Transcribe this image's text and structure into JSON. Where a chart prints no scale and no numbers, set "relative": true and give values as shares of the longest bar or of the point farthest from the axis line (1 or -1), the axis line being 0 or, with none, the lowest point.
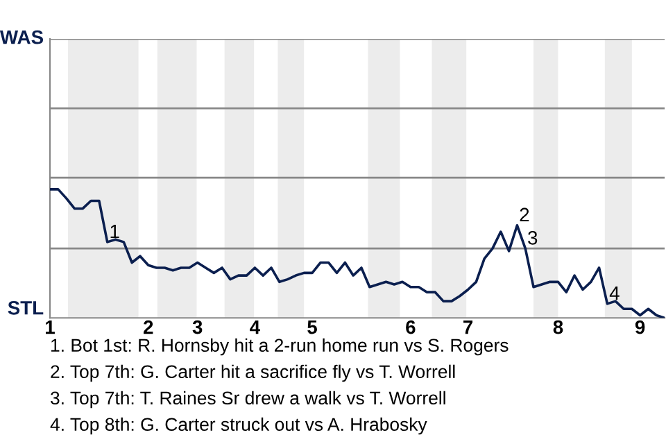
{
  "chart_data": {
    "type": "line",
    "relative": true,
    "categories": [
      "1",
      null,
      null,
      null,
      null,
      null,
      null,
      null,
      null,
      null,
      null,
      null,
      "2",
      null,
      null,
      null,
      null,
      null,
      "3",
      null,
      null,
      null,
      null,
      null,
      null,
      "4",
      null,
      null,
      null,
      null,
      null,
      null,
      "5",
      null,
      null,
      null,
      null,
      null,
      null,
      null,
      null,
      null,
      null,
      null,
      "6",
      null,
      null,
      null,
      null,
      null,
      null,
      "7",
      null,
      null,
      null,
      null,
      null,
      null,
      null,
      null,
      null,
      null,
      "8",
      null,
      null,
      null,
      null,
      null,
      null,
      null,
      null,
      null,
      "9",
      null,
      null,
      null
    ],
    "series": [
      {
        "color": "#0b1f4f",
        "values": [
          1,
          1,
          0.93,
          0.85,
          0.85,
          0.91,
          0.91,
          0.59,
          0.61,
          0.59,
          0.43,
          0.48,
          0.41,
          0.39,
          0.39,
          0.37,
          0.39,
          0.39,
          0.43,
          0.39,
          0.35,
          0.39,
          0.3,
          0.33,
          0.33,
          0.39,
          0.33,
          0.39,
          0.28,
          0.3,
          0.33,
          0.35,
          0.35,
          0.43,
          0.43,
          0.35,
          0.43,
          0.33,
          0.39,
          0.24,
          0.26,
          0.28,
          0.26,
          0.28,
          0.24,
          0.24,
          0.2,
          0.2,
          0.13,
          0.13,
          0.17,
          0.22,
          0.28,
          0.46,
          0.54,
          0.67,
          0.52,
          0.72,
          0.54,
          0.24,
          0.26,
          0.28,
          0.28,
          0.2,
          0.33,
          0.22,
          0.28,
          0.39,
          0.11,
          0.13,
          0.07,
          0.07,
          0.02,
          0.07,
          0.02,
          0
        ]
      }
    ],
    "marker": "none",
    "line_style": "solid",
    "ref_lines": [
      {
        "axis": "y",
        "value": 0.54,
        "color": "#888888"
      },
      {
        "axis": "y",
        "value": 1.09,
        "color": "#888888"
      },
      {
        "axis": "y",
        "value": 1.63,
        "color": "#888888"
      },
      {
        "axis": "y",
        "value": 2.17,
        "color": "#888888"
      }
    ],
    "annotations": [
      "WAS",
      "STL",
      {
        "text": "1",
        "y": 0.59
      },
      {
        "text": "2",
        "y": 0.72
      },
      {
        "text": "3",
        "y": 0.54
      },
      {
        "text": "4",
        "y": 0.11
      },
      "1. Bot 1st: R. Hornsby hit a 2-run home run vs S. Rogers",
      "2. Top 7th: G. Carter hit a sacrifice fly vs T. Worrell",
      "3. Top 7th: T. Raines Sr drew a walk vs T. Worrell",
      "4. Top 8th: G. Carter struck out vs A. Hrabosky"
    ]
  }
}
